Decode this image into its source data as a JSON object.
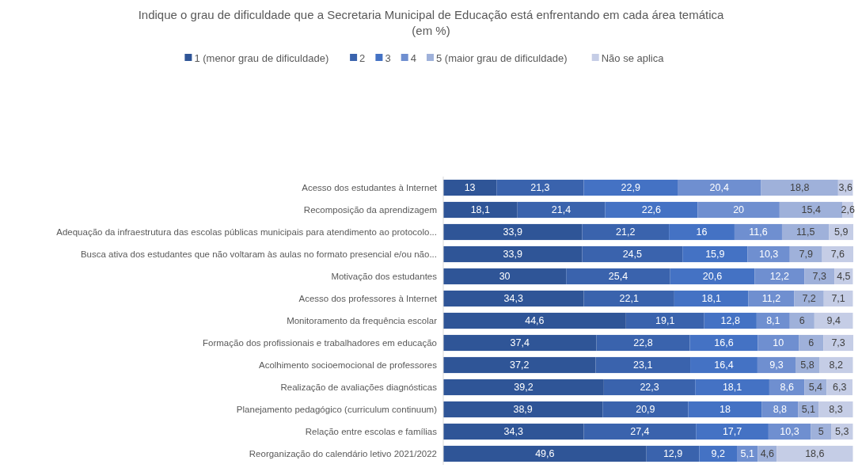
{
  "chart_data": {
    "type": "bar",
    "orientation": "horizontal",
    "stacked": true,
    "legend": "top",
    "title": "Indique o grau de dificuldade que a Secretaria Municipal de Educação está enfrentando em cada área temática\n(em %)",
    "categories": [
      "Acesso dos estudantes à Internet",
      "Recomposição da aprendizagem",
      "Adequação da infraestrutura das escolas públicas municipais para atendimento ao protocolo...",
      "Busca ativa dos estudantes que não voltaram às aulas no formato presencial e/ou não...",
      "Motivação dos estudantes",
      "Acesso dos professores à Internet",
      "Monitoramento da frequência escolar",
      "Formação dos profissionais e trabalhadores em educação",
      "Acolhimento socioemocional de professores",
      "Realização de avaliações diagnósticas",
      "Planejamento pedagógico (curriculum continuum)",
      "Relação entre escolas e famílias",
      "Reorganização do calendário letivo 2021/2022"
    ],
    "series": [
      {
        "name": "1 (menor grau de dificuldade)",
        "color": "#2f5597",
        "values": [
          13,
          18.1,
          33.9,
          33.9,
          30,
          34.3,
          44.6,
          37.4,
          37.2,
          39.2,
          38.9,
          34.3,
          49.6
        ],
        "value_labels": [
          "13",
          "18,1",
          "33,9",
          "33,9",
          "30",
          "34,3",
          "44,6",
          "37,4",
          "37,2",
          "39,2",
          "38,9",
          "34,3",
          "49,6"
        ]
      },
      {
        "name": "2",
        "color": "#3a63ad",
        "values": [
          21.3,
          21.4,
          21.2,
          24.5,
          25.4,
          22.1,
          19.1,
          22.8,
          23.1,
          22.3,
          20.9,
          27.4,
          12.9
        ],
        "value_labels": [
          "21,3",
          "21,4",
          "21,2",
          "24,5",
          "25,4",
          "22,1",
          "19,1",
          "22,8",
          "23,1",
          "22,3",
          "20,9",
          "27,4",
          "12,9"
        ]
      },
      {
        "name": "3",
        "color": "#4472c4",
        "values": [
          22.9,
          22.6,
          16,
          15.9,
          20.6,
          18.1,
          12.8,
          16.6,
          16.4,
          18.1,
          18,
          17.7,
          9.2
        ],
        "value_labels": [
          "22,9",
          "22,6",
          "16",
          "15,9",
          "20,6",
          "18,1",
          "12,8",
          "16,6",
          "16,4",
          "18,1",
          "18",
          "17,7",
          "9,2"
        ]
      },
      {
        "name": "4",
        "color": "#6f8fd0",
        "values": [
          20.4,
          20,
          11.6,
          10.3,
          12.2,
          11.2,
          8.1,
          10,
          9.3,
          8.6,
          8.8,
          10.3,
          5.1
        ],
        "value_labels": [
          "20,4",
          "20",
          "11,6",
          "10,3",
          "12,2",
          "11,2",
          "8,1",
          "10",
          "9,3",
          "8,6",
          "8,8",
          "10,3",
          "5,1"
        ]
      },
      {
        "name": "5 (maior grau de dificuldade)",
        "color": "#9fb1da",
        "values": [
          18.8,
          15.4,
          11.5,
          7.9,
          7.3,
          7.2,
          6,
          6,
          5.8,
          5.4,
          5.1,
          5,
          4.6
        ],
        "value_labels": [
          "18,8",
          "15,4",
          "11,5",
          "7,9",
          "7,3",
          "7,2",
          "6",
          "6",
          "5,8",
          "5,4",
          "5,1",
          "5",
          "4,6"
        ]
      },
      {
        "name": "Não se aplica",
        "color": "#c5cde6",
        "values": [
          3.6,
          2.6,
          5.9,
          7.6,
          4.5,
          7.1,
          9.4,
          7.3,
          8.2,
          6.3,
          8.3,
          5.3,
          18.6
        ],
        "value_labels": [
          "3,6",
          "2,6",
          "5,9",
          "7,6",
          "4,5",
          "7,1",
          "9,4",
          "7,3",
          "8,2",
          "6,3",
          "8,3",
          "5,3",
          "18,6"
        ]
      }
    ]
  }
}
